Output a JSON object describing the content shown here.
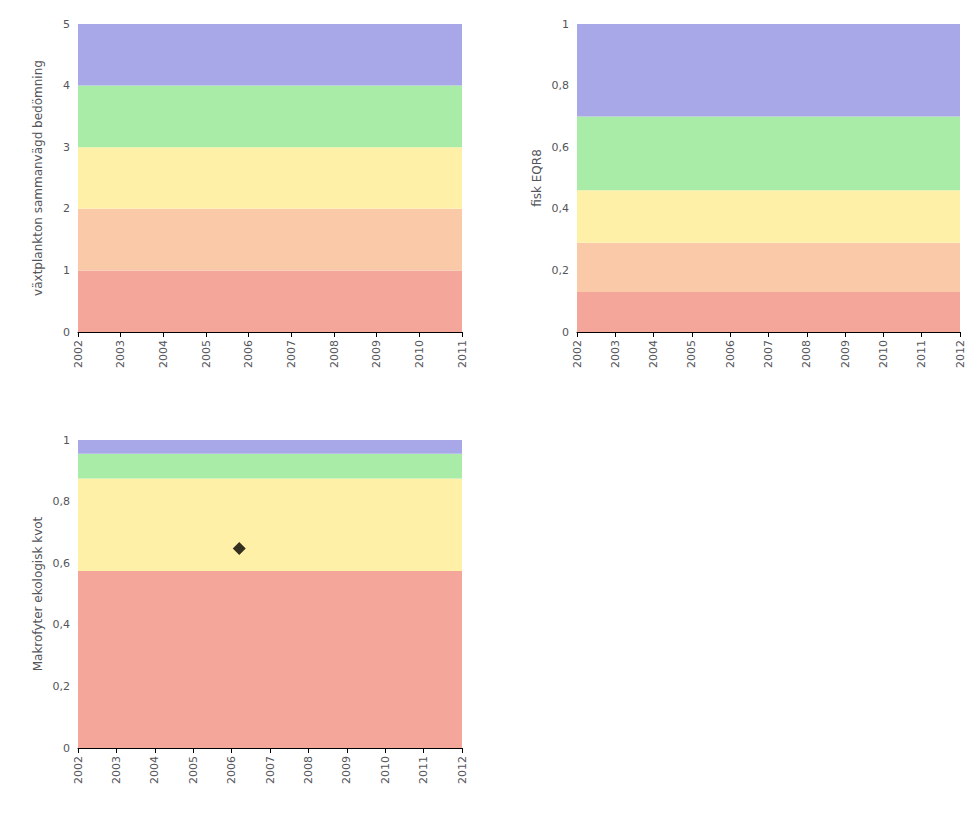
{
  "chart_data": [
    {
      "type": "bands",
      "ylabel": "växtplankton sammanvägd bedömning",
      "xlim": [
        2002,
        2011
      ],
      "xticks": [
        2002,
        2003,
        2004,
        2005,
        2006,
        2007,
        2008,
        2009,
        2010,
        2011
      ],
      "ylim": [
        0,
        5
      ],
      "yticks": [
        0,
        1,
        2,
        3,
        4,
        5
      ],
      "grid": false,
      "bands": [
        {
          "ymin": 0,
          "ymax": 1,
          "color": "#F4A69A"
        },
        {
          "ymin": 1,
          "ymax": 2,
          "color": "#F9C9A8"
        },
        {
          "ymin": 2,
          "ymax": 3,
          "color": "#FFF0A8"
        },
        {
          "ymin": 3,
          "ymax": 4,
          "color": "#A8ECA8"
        },
        {
          "ymin": 4,
          "ymax": 5,
          "color": "#A8A8E8"
        }
      ]
    },
    {
      "type": "bands",
      "ylabel": "fisk EQR8",
      "xlim": [
        2002,
        2012
      ],
      "xticks": [
        2002,
        2003,
        2004,
        2005,
        2006,
        2007,
        2008,
        2009,
        2010,
        2011,
        2012
      ],
      "ylim": [
        0,
        1
      ],
      "yticks": [
        0,
        {
          "value": 0.2,
          "label": "0,2"
        },
        {
          "value": 0.4,
          "label": "0,4"
        },
        {
          "value": 0.6,
          "label": "0,6"
        },
        {
          "value": 0.8,
          "label": "0,8"
        },
        1
      ],
      "grid": false,
      "bands": [
        {
          "ymin": 0,
          "ymax": 0.13,
          "color": "#F4A69A"
        },
        {
          "ymin": 0.13,
          "ymax": 0.29,
          "color": "#F9C9A8"
        },
        {
          "ymin": 0.29,
          "ymax": 0.46,
          "color": "#FFF0A8"
        },
        {
          "ymin": 0.46,
          "ymax": 0.7,
          "color": "#A8ECA8"
        },
        {
          "ymin": 0.7,
          "ymax": 1.0,
          "color": "#A8A8E8"
        }
      ]
    },
    {
      "type": "scatter",
      "ylabel": "Makrofyter ekologisk kvot",
      "xlim": [
        2002,
        2012
      ],
      "xticks": [
        2002,
        2003,
        2004,
        2005,
        2006,
        2007,
        2008,
        2009,
        2010,
        2011,
        2012
      ],
      "ylim": [
        0,
        1
      ],
      "yticks": [
        0,
        {
          "value": 0.2,
          "label": "0,2"
        },
        {
          "value": 0.4,
          "label": "0,4"
        },
        {
          "value": 0.6,
          "label": "0,6"
        },
        {
          "value": 0.8,
          "label": "0,8"
        },
        1
      ],
      "grid": false,
      "bands": [
        {
          "ymin": 0,
          "ymax": 0.575,
          "color": "#F4A69A"
        },
        {
          "ymin": 0.575,
          "ymax": 0.875,
          "color": "#FFF0A8"
        },
        {
          "ymin": 0.875,
          "ymax": 0.955,
          "color": "#A8ECA8"
        },
        {
          "ymin": 0.955,
          "ymax": 1.0,
          "color": "#A8A8E8"
        }
      ],
      "x": [
        2006.2
      ],
      "values": [
        0.648
      ],
      "color": "black",
      "marker": "diamond"
    }
  ]
}
